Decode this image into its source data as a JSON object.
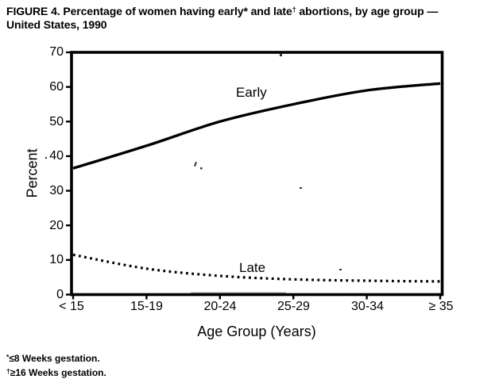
{
  "figure": {
    "title_line1_pre": "FIGURE 4. Percentage of women having early* and late",
    "title_line1_sup": "†",
    "title_line1_post": " abortions, by age group —",
    "title_line2": "United States, 1990",
    "footnotes": [
      {
        "marker": "*",
        "text": "≤8 Weeks gestation."
      },
      {
        "marker": "†",
        "text": "≥16 Weeks gestation."
      }
    ]
  },
  "chart_data": {
    "type": "line",
    "title": "FIGURE 4. Percentage of women having early* and late† abortions, by age group — United States, 1990",
    "categories": [
      "< 15",
      "15-19",
      "20-24",
      "25-29",
      "30-34",
      "≥ 35"
    ],
    "series": [
      {
        "name": "Early",
        "line_style": "solid",
        "values": [
          36.5,
          43,
          50,
          55,
          59,
          61
        ]
      },
      {
        "name": "Late",
        "line_style": "dotted",
        "values": [
          11.5,
          7.5,
          5.4,
          4.4,
          4.0,
          3.8
        ]
      }
    ],
    "xlabel": "Age Group (Years)",
    "ylabel": "Percent",
    "ylim": [
      0,
      70
    ],
    "yticks": [
      0,
      10,
      20,
      30,
      40,
      50,
      60,
      70
    ],
    "ytick_labels_top_to_bottom": [
      "70",
      "60",
      "50",
      "40",
      "30",
      "20",
      "10",
      "0"
    ],
    "grid": false,
    "legend_position": "inline-labels",
    "line_color": "#000000",
    "background_color": "#ffffff"
  }
}
